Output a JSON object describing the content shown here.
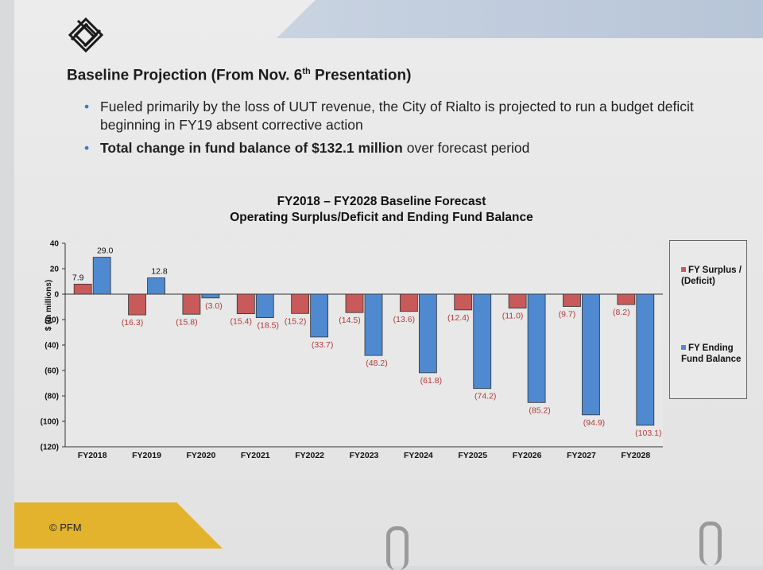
{
  "slide": {
    "title_main": "Baseline Projection (From Nov. 6",
    "title_sup": "th",
    "title_end": " Presentation)",
    "bullets": [
      {
        "text": "Fueled primarily by the loss of UUT revenue, the City of Rialto is projected to run a budget deficit beginning in FY19 absent corrective action"
      },
      {
        "strong": "Total change in fund balance of $132.1 million",
        "rest": " over forecast period"
      }
    ],
    "footer": "© PFM"
  },
  "colors": {
    "surplus": "#c85a5a",
    "balance": "#4f8ad0"
  },
  "chart_data": {
    "type": "bar",
    "title": "FY2018 – FY2028 Baseline Forecast",
    "subtitle": "Operating Surplus/Deficit and Ending Fund Balance",
    "ylabel": "$ (In millions)",
    "ylim": [
      -120,
      40
    ],
    "yticks": [
      40,
      20,
      0,
      -20,
      -40,
      -60,
      -80,
      -100,
      -120
    ],
    "ytick_labels": [
      "40",
      "20",
      "0",
      "(20)",
      "(40)",
      "(60)",
      "(80)",
      "(100)",
      "(120)"
    ],
    "categories": [
      "FY2018",
      "FY2019",
      "FY2020",
      "FY2021",
      "FY2022",
      "FY2023",
      "FY2024",
      "FY2025",
      "FY2026",
      "FY2027",
      "FY2028"
    ],
    "series": [
      {
        "name": "FY Surplus / (Deficit)",
        "values": [
          7.9,
          -16.3,
          -15.8,
          -15.4,
          -15.2,
          -14.5,
          -13.6,
          -12.4,
          -11.0,
          -9.7,
          -8.2
        ],
        "labels": [
          "7.9",
          "(16.3)",
          "(15.8)",
          "(15.4)",
          "(15.2)",
          "(14.5)",
          "(13.6)",
          "(12.4)",
          "(11.0)",
          "(9.7)",
          "(8.2)"
        ]
      },
      {
        "name": "FY Ending Fund Balance",
        "values": [
          29.0,
          12.8,
          -3.0,
          -18.5,
          -33.7,
          -48.2,
          -61.8,
          -74.2,
          -85.2,
          -94.9,
          -103.1
        ],
        "labels": [
          "29.0",
          "12.8",
          "(3.0)",
          "(18.5)",
          "(33.7)",
          "(48.2)",
          "(61.8)",
          "(74.2)",
          "(85.2)",
          "(94.9)",
          "(103.1)"
        ]
      }
    ],
    "legend": {
      "position": "right",
      "entries": [
        "FY Surplus / (Deficit)",
        "FY Ending Fund Balance"
      ]
    }
  }
}
